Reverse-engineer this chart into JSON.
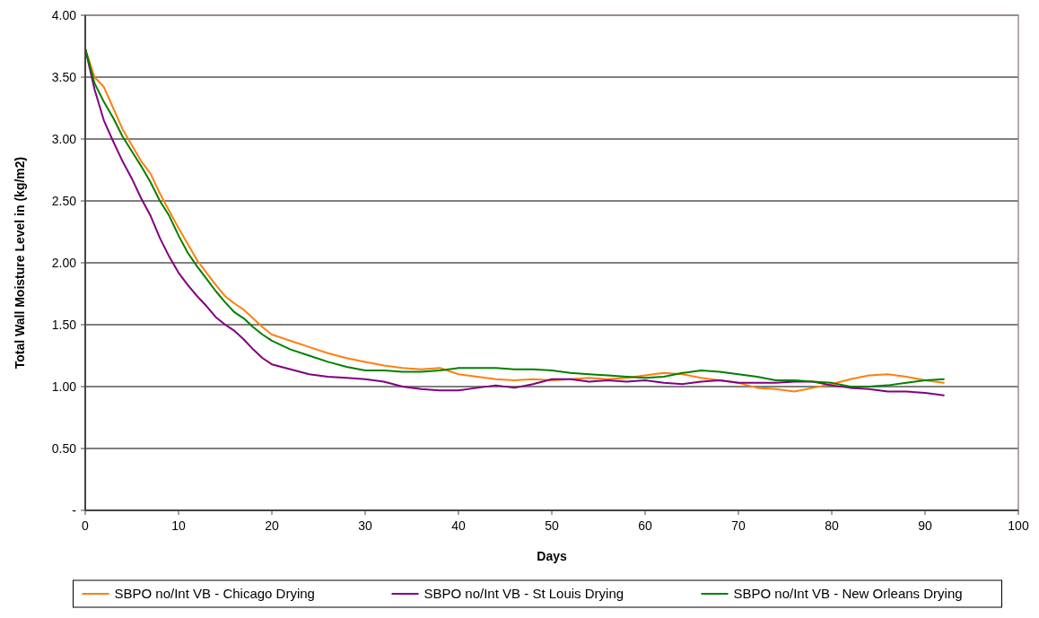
{
  "chart_data": {
    "type": "line",
    "xlabel": "Days",
    "ylabel": "Total Wall Moisture Level in (kg/m2)",
    "x": [
      0,
      1,
      2,
      3,
      4,
      5,
      6,
      7,
      8,
      9,
      10,
      11,
      12,
      13,
      14,
      15,
      16,
      17,
      18,
      19,
      20,
      22,
      24,
      26,
      28,
      30,
      32,
      34,
      36,
      38,
      40,
      42,
      44,
      46,
      48,
      50,
      52,
      54,
      56,
      58,
      60,
      62,
      64,
      66,
      68,
      70,
      72,
      74,
      76,
      78,
      80,
      82,
      84,
      86,
      88,
      90,
      92
    ],
    "series": [
      {
        "name": "SBPO no/Int VB - Chicago Drying",
        "color": "#ff7f0e",
        "values": [
          3.73,
          3.5,
          3.42,
          3.25,
          3.08,
          2.95,
          2.82,
          2.72,
          2.56,
          2.42,
          2.28,
          2.15,
          2.02,
          1.92,
          1.82,
          1.73,
          1.67,
          1.62,
          1.55,
          1.48,
          1.42,
          1.37,
          1.32,
          1.27,
          1.23,
          1.2,
          1.17,
          1.15,
          1.14,
          1.15,
          1.1,
          1.08,
          1.06,
          1.05,
          1.06,
          1.05,
          1.06,
          1.07,
          1.06,
          1.07,
          1.09,
          1.11,
          1.1,
          1.07,
          1.05,
          1.03,
          0.99,
          0.98,
          0.96,
          0.99,
          1.02,
          1.06,
          1.09,
          1.1,
          1.08,
          1.05,
          1.03
        ]
      },
      {
        "name": "SBPO no/Int VB - St Louis Drying",
        "color": "#800080",
        "values": [
          3.73,
          3.4,
          3.15,
          2.98,
          2.82,
          2.68,
          2.52,
          2.38,
          2.2,
          2.05,
          1.92,
          1.82,
          1.73,
          1.65,
          1.56,
          1.5,
          1.45,
          1.38,
          1.3,
          1.23,
          1.18,
          1.14,
          1.1,
          1.08,
          1.07,
          1.06,
          1.04,
          1.0,
          0.98,
          0.97,
          0.97,
          0.99,
          1.01,
          0.99,
          1.02,
          1.06,
          1.06,
          1.04,
          1.05,
          1.04,
          1.05,
          1.03,
          1.02,
          1.04,
          1.05,
          1.03,
          1.03,
          1.03,
          1.04,
          1.04,
          1.01,
          0.99,
          0.98,
          0.96,
          0.96,
          0.95,
          0.93
        ]
      },
      {
        "name": "SBPO no/Int VB - New Orleans Drying",
        "color": "#008000",
        "values": [
          3.73,
          3.45,
          3.3,
          3.17,
          3.02,
          2.9,
          2.78,
          2.65,
          2.5,
          2.38,
          2.22,
          2.08,
          1.97,
          1.87,
          1.77,
          1.68,
          1.6,
          1.55,
          1.48,
          1.42,
          1.37,
          1.3,
          1.25,
          1.2,
          1.16,
          1.13,
          1.13,
          1.12,
          1.12,
          1.13,
          1.15,
          1.15,
          1.15,
          1.14,
          1.14,
          1.13,
          1.11,
          1.1,
          1.09,
          1.08,
          1.07,
          1.08,
          1.11,
          1.13,
          1.12,
          1.1,
          1.08,
          1.05,
          1.05,
          1.04,
          1.03,
          1.0,
          1.0,
          1.01,
          1.03,
          1.05,
          1.06
        ]
      }
    ],
    "xlim": [
      0,
      100
    ],
    "xticks": [
      0,
      10,
      20,
      30,
      40,
      50,
      60,
      70,
      80,
      90,
      100
    ],
    "ylim": [
      0,
      4
    ],
    "yticks": [
      {
        "value": 0,
        "label": "-"
      },
      {
        "value": 0.5,
        "label": "0.50"
      },
      {
        "value": 1,
        "label": "1.00"
      },
      {
        "value": 1.5,
        "label": "1.50"
      },
      {
        "value": 2,
        "label": "2.00"
      },
      {
        "value": 2.5,
        "label": "2.50"
      },
      {
        "value": 3,
        "label": "3.00"
      },
      {
        "value": 3.5,
        "label": "3.50"
      },
      {
        "value": 4,
        "label": "4.00"
      }
    ],
    "grid": "y",
    "legend": "bottom",
    "marker": "none",
    "line_style": "solid"
  }
}
